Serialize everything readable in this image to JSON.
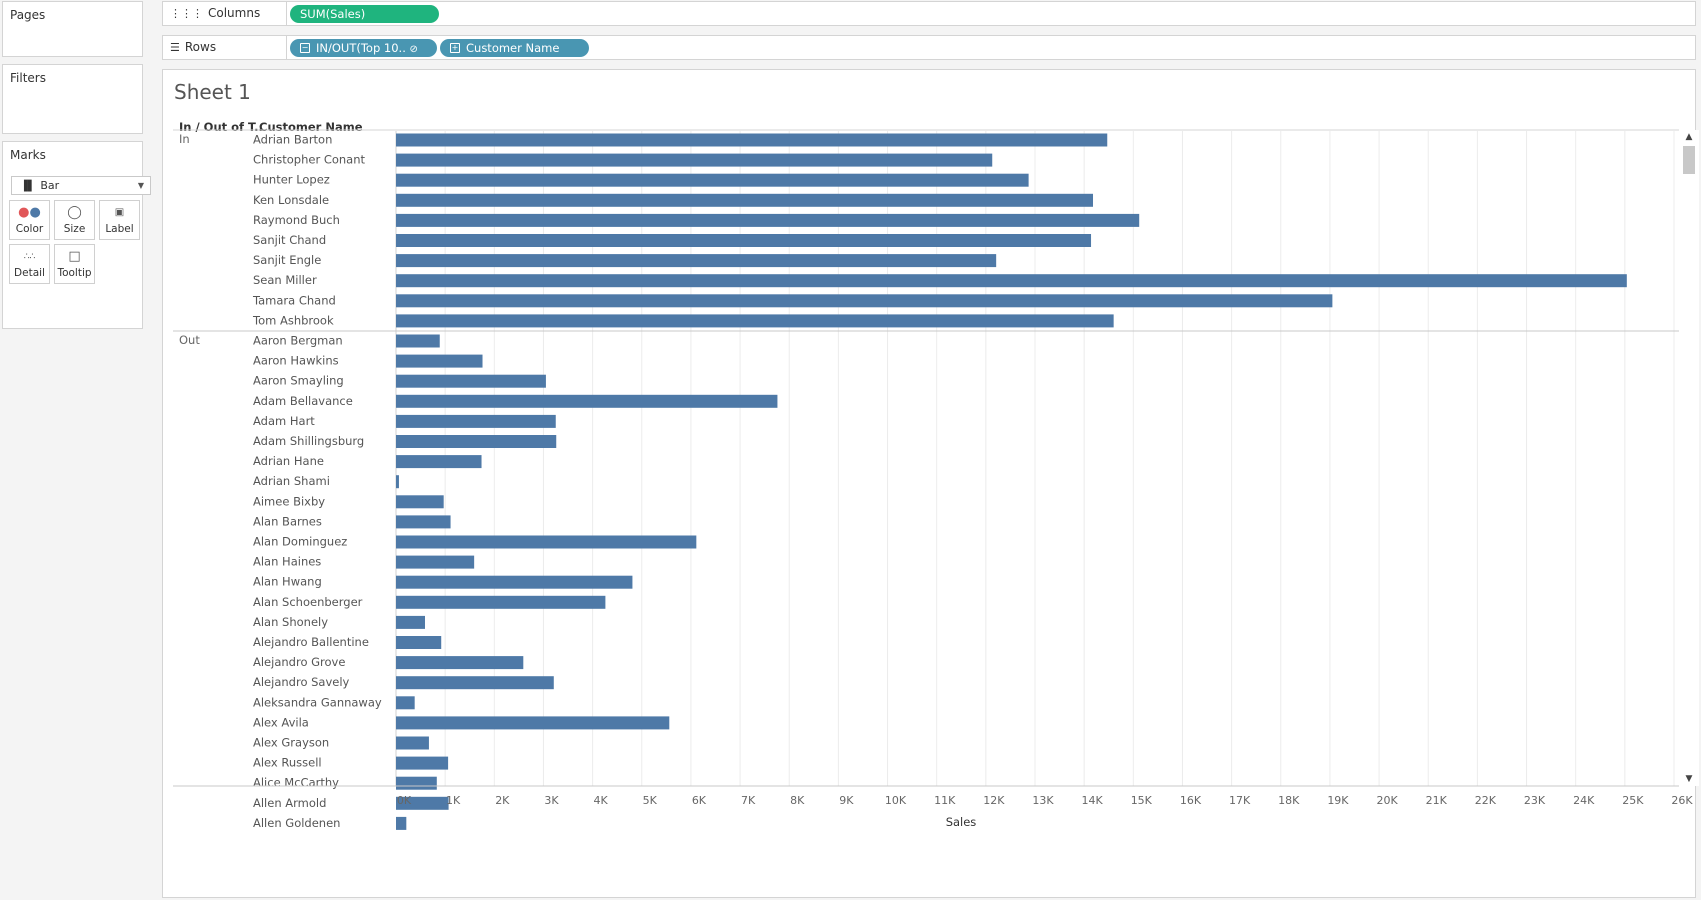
{
  "side": {
    "pages_title": "Pages",
    "filters_title": "Filters",
    "marks_title": "Marks",
    "mark_type": "Bar",
    "mark_buttons": [
      "Color",
      "Size",
      "Label",
      "Detail",
      "Tooltip"
    ]
  },
  "shelves": {
    "columns_label": "Columns",
    "rows_label": "Rows",
    "columns_pill": "SUM(Sales)",
    "rows_pills": [
      "IN/OUT(Top 10..",
      "Customer Name"
    ]
  },
  "sheet": {
    "title": "Sheet 1",
    "header_group": "In / Out of T..",
    "header_name": "Customer Name"
  },
  "colors": {
    "bar": "#4e79a7",
    "columns_pill": "#1fb47e",
    "rows_pill": "#4996b2"
  },
  "chart_data": {
    "type": "bar",
    "orientation": "horizontal",
    "xlabel": "Sales",
    "xlim": [
      0,
      26000
    ],
    "x_ticks": [
      "0K",
      "1K",
      "2K",
      "3K",
      "4K",
      "5K",
      "6K",
      "7K",
      "8K",
      "9K",
      "10K",
      "11K",
      "12K",
      "13K",
      "14K",
      "15K",
      "16K",
      "17K",
      "18K",
      "19K",
      "20K",
      "21K",
      "22K",
      "23K",
      "24K",
      "25K",
      "26K"
    ],
    "grid": true,
    "groups": [
      {
        "name": "In",
        "categories": [
          "Adrian Barton",
          "Christopher Conant",
          "Hunter Lopez",
          "Ken Lonsdale",
          "Raymond Buch",
          "Sanjit Chand",
          "Sanjit Engle",
          "Sean Miller",
          "Tamara Chand",
          "Tom Ashbrook"
        ],
        "values": [
          14470,
          12130,
          12870,
          14180,
          15120,
          14140,
          12210,
          25040,
          19050,
          14600
        ]
      },
      {
        "name": "Out",
        "categories": [
          "Aaron Bergman",
          "Aaron Hawkins",
          "Aaron Smayling",
          "Adam Bellavance",
          "Adam Hart",
          "Adam Shillingsburg",
          "Adrian Hane",
          "Adrian Shami",
          "Aimee Bixby",
          "Alan Barnes",
          "Alan Dominguez",
          "Alan Haines",
          "Alan Hwang",
          "Alan Schoenberger",
          "Alan Shonely",
          "Alejandro Ballentine",
          "Alejandro Grove",
          "Alejandro Savely",
          "Aleksandra Gannaway",
          "Alex Avila",
          "Alex Grayson",
          "Alex Russell",
          "Alice McCarthy",
          "Allen Armold",
          "Allen Goldenen"
        ],
        "values": [
          890,
          1760,
          3050,
          7760,
          3250,
          3260,
          1740,
          60,
          970,
          1110,
          6110,
          1590,
          4810,
          4260,
          590,
          920,
          2590,
          3210,
          380,
          5560,
          670,
          1060,
          830,
          1070,
          210
        ]
      }
    ]
  }
}
